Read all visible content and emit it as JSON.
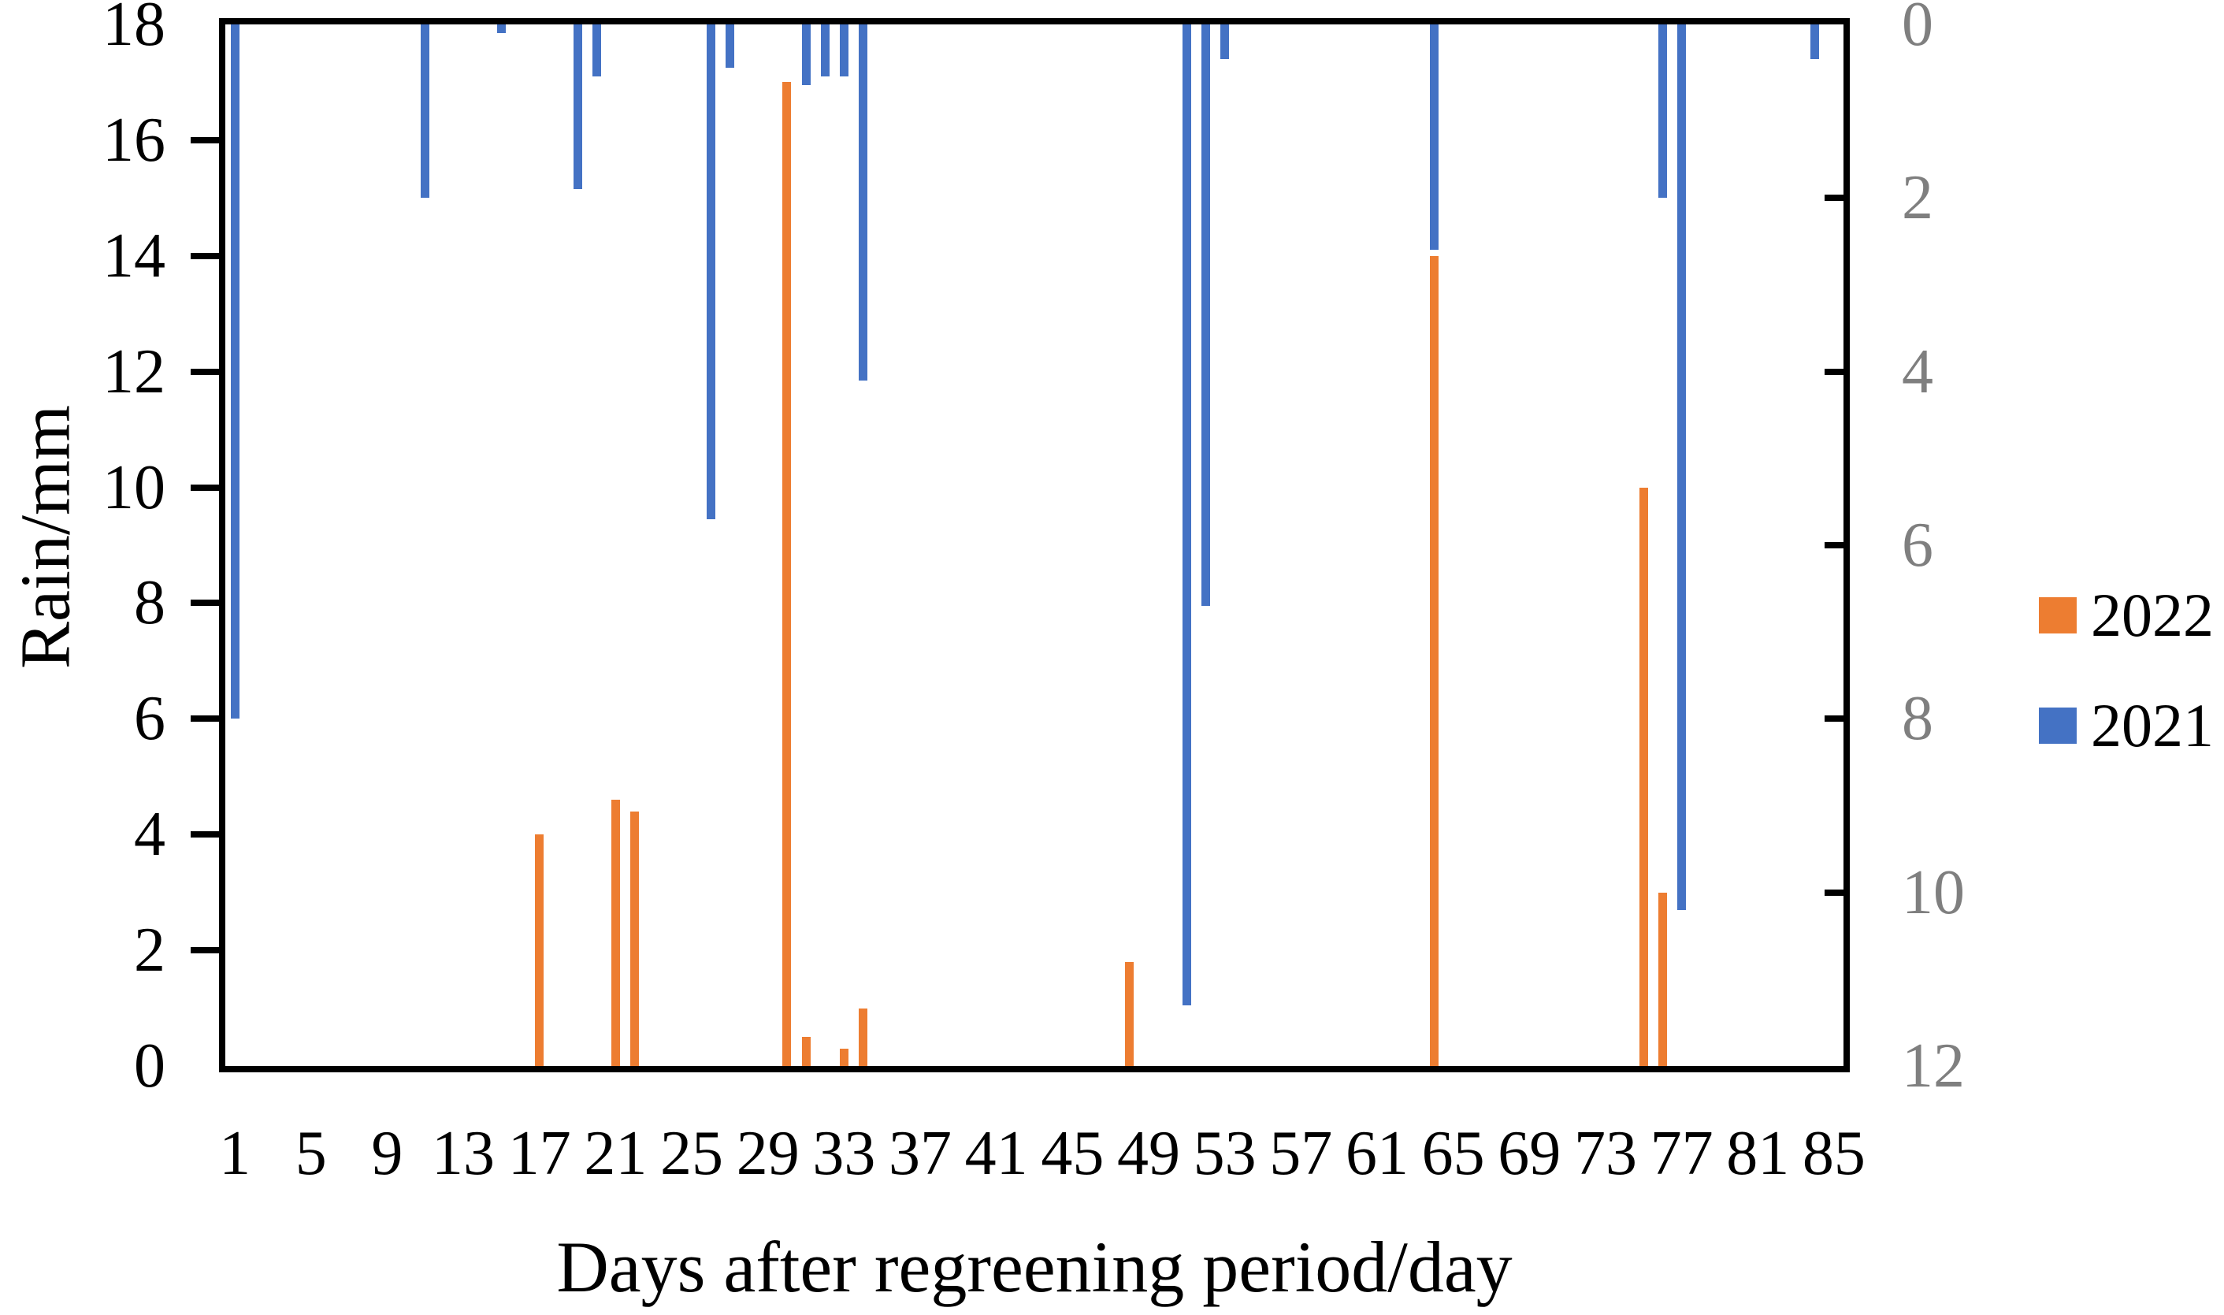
{
  "chart_data": {
    "type": "bar",
    "title": "",
    "xlabel": "Days after regreening period/day",
    "ylabel_left": "Rain/mm",
    "x_range": [
      1,
      85
    ],
    "x_tick_labels": [
      1,
      5,
      9,
      13,
      17,
      21,
      25,
      29,
      33,
      37,
      41,
      45,
      49,
      53,
      57,
      61,
      65,
      69,
      73,
      77,
      81,
      85
    ],
    "left_axis": {
      "min": 0,
      "max": 18,
      "tick_step": 2,
      "tick_labels": [
        "0",
        "2",
        "4",
        "6",
        "8",
        "10",
        "12",
        "14",
        "16",
        "18"
      ],
      "color": "#000000"
    },
    "right_axis": {
      "min": 0,
      "max": 12,
      "tick_step": 2,
      "inverted": true,
      "tick_labels": [
        "0",
        "2",
        "4",
        "6",
        "8",
        "10",
        "12"
      ],
      "color": "#7f7f7f"
    },
    "grid": "off",
    "legend_position": "right",
    "series": [
      {
        "name": "2022",
        "color": "#ED7D31",
        "axis": "left",
        "direction": "up-from-bottom",
        "points": [
          {
            "day": 17,
            "value": 4.0
          },
          {
            "day": 21,
            "value": 4.6
          },
          {
            "day": 22,
            "value": 4.4
          },
          {
            "day": 30,
            "value": 17.0
          },
          {
            "day": 31,
            "value": 0.5
          },
          {
            "day": 33,
            "value": 0.3
          },
          {
            "day": 34,
            "value": 1.0
          },
          {
            "day": 48,
            "value": 1.8
          },
          {
            "day": 64,
            "value": 14.0
          },
          {
            "day": 75,
            "value": 10.0
          },
          {
            "day": 76,
            "value": 3.0
          }
        ]
      },
      {
        "name": "2021",
        "color": "#4472C4",
        "axis": "right",
        "direction": "down-from-top",
        "points": [
          {
            "day": 1,
            "value": 8.0
          },
          {
            "day": 11,
            "value": 2.0
          },
          {
            "day": 15,
            "value": 0.1
          },
          {
            "day": 19,
            "value": 1.9
          },
          {
            "day": 20,
            "value": 0.6
          },
          {
            "day": 26,
            "value": 5.7
          },
          {
            "day": 27,
            "value": 0.5
          },
          {
            "day": 31,
            "value": 0.7
          },
          {
            "day": 32,
            "value": 0.6
          },
          {
            "day": 33,
            "value": 0.6
          },
          {
            "day": 34,
            "value": 4.1
          },
          {
            "day": 51,
            "value": 11.3
          },
          {
            "day": 52,
            "value": 6.7
          },
          {
            "day": 53,
            "value": 0.4
          },
          {
            "day": 64,
            "value": 2.6
          },
          {
            "day": 76,
            "value": 2.0
          },
          {
            "day": 77,
            "value": 10.2
          },
          {
            "day": 84,
            "value": 0.4
          }
        ]
      }
    ]
  },
  "legend": {
    "entries": [
      {
        "label": "2022",
        "color": "#ED7D31"
      },
      {
        "label": "2021",
        "color": "#4472C4"
      }
    ]
  },
  "axes_titles": {
    "y_left": "Rain/mm",
    "x": "Days after regreening period/day"
  }
}
